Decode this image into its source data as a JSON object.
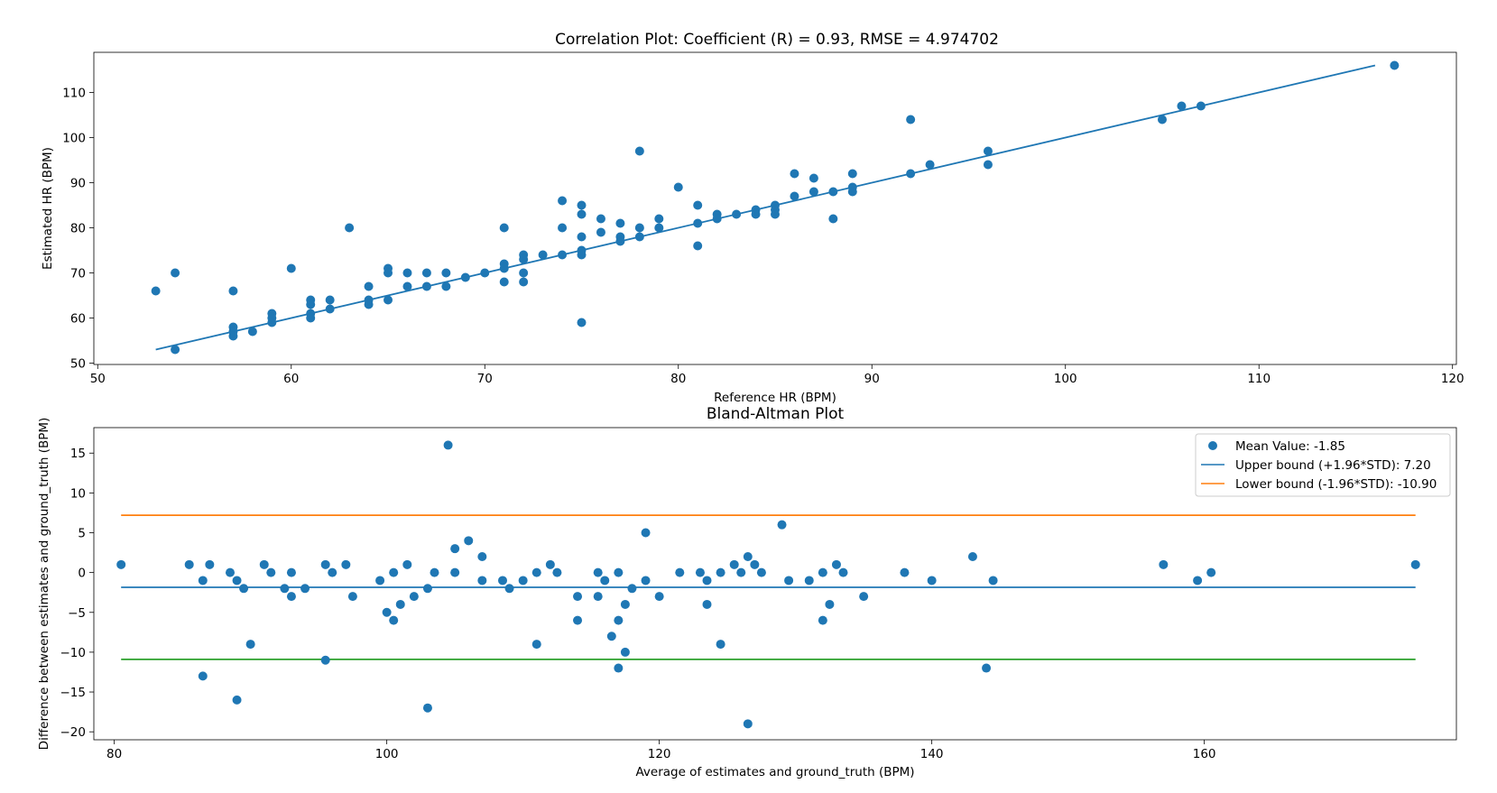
{
  "chart_data": [
    {
      "type": "scatter",
      "title": "Correlation Plot: Coefficient (R) = 0.93, RMSE = 4.974702",
      "xlabel": "Reference HR (BPM)",
      "ylabel": "Estimated HR (BPM)",
      "xlim": [
        49.8,
        120.2
      ],
      "ylim": [
        49.7,
        118.9
      ],
      "xticks": [
        "50",
        "60",
        "70",
        "80",
        "90",
        "100",
        "110",
        "120"
      ],
      "yticks": [
        "50",
        "60",
        "70",
        "80",
        "90",
        "100",
        "110"
      ],
      "xtick_values": [
        50,
        60,
        70,
        80,
        90,
        100,
        110,
        120
      ],
      "ytick_values": [
        50,
        60,
        70,
        80,
        90,
        100,
        110
      ],
      "grid": false,
      "point_color": "#1f77b4",
      "fit_line": {
        "color": "#1f77b4",
        "x": [
          53,
          116
        ],
        "y": [
          53,
          116
        ]
      },
      "points": [
        [
          53,
          66
        ],
        [
          54,
          70
        ],
        [
          54,
          53
        ],
        [
          57,
          66
        ],
        [
          57,
          58
        ],
        [
          57,
          57
        ],
        [
          57,
          56
        ],
        [
          58,
          57
        ],
        [
          59,
          61
        ],
        [
          59,
          60
        ],
        [
          59,
          59
        ],
        [
          60,
          71
        ],
        [
          61,
          64
        ],
        [
          61,
          63
        ],
        [
          61,
          61
        ],
        [
          61,
          60
        ],
        [
          62,
          64
        ],
        [
          62,
          62
        ],
        [
          63,
          80
        ],
        [
          64,
          67
        ],
        [
          64,
          64
        ],
        [
          64,
          63
        ],
        [
          65,
          71
        ],
        [
          65,
          70
        ],
        [
          65,
          64
        ],
        [
          66,
          70
        ],
        [
          66,
          67
        ],
        [
          67,
          70
        ],
        [
          67,
          67
        ],
        [
          68,
          70
        ],
        [
          68,
          67
        ],
        [
          69,
          69
        ],
        [
          70,
          70
        ],
        [
          71,
          80
        ],
        [
          71,
          72
        ],
        [
          71,
          71
        ],
        [
          71,
          68
        ],
        [
          72,
          74
        ],
        [
          72,
          73
        ],
        [
          72,
          70
        ],
        [
          72,
          68
        ],
        [
          73,
          74
        ],
        [
          74,
          86
        ],
        [
          74,
          80
        ],
        [
          74,
          74
        ],
        [
          75,
          85
        ],
        [
          75,
          83
        ],
        [
          75,
          78
        ],
        [
          75,
          75
        ],
        [
          75,
          74
        ],
        [
          75,
          59
        ],
        [
          76,
          82
        ],
        [
          76,
          79
        ],
        [
          77,
          81
        ],
        [
          77,
          78
        ],
        [
          77,
          77
        ],
        [
          78,
          97
        ],
        [
          78,
          80
        ],
        [
          78,
          78
        ],
        [
          79,
          82
        ],
        [
          79,
          80
        ],
        [
          80,
          89
        ],
        [
          81,
          85
        ],
        [
          81,
          81
        ],
        [
          81,
          76
        ],
        [
          82,
          83
        ],
        [
          82,
          82
        ],
        [
          83,
          83
        ],
        [
          84,
          84
        ],
        [
          84,
          83
        ],
        [
          85,
          85
        ],
        [
          85,
          84
        ],
        [
          85,
          83
        ],
        [
          86,
          92
        ],
        [
          86,
          87
        ],
        [
          87,
          91
        ],
        [
          87,
          88
        ],
        [
          88,
          88
        ],
        [
          88,
          82
        ],
        [
          89,
          92
        ],
        [
          89,
          89
        ],
        [
          89,
          88
        ],
        [
          92,
          104
        ],
        [
          92,
          92
        ],
        [
          93,
          94
        ],
        [
          96,
          97
        ],
        [
          96,
          94
        ],
        [
          105,
          104
        ],
        [
          106,
          107
        ],
        [
          107,
          107
        ],
        [
          117,
          116
        ]
      ]
    },
    {
      "type": "scatter",
      "title": "Bland-Altman Plot",
      "xlabel": "Average of estimates and ground_truth (BPM)",
      "ylabel": "Difference between estimates and ground_truth (BPM)",
      "xlim": [
        78.5,
        178.5
      ],
      "ylim": [
        -21.0,
        18.2
      ],
      "xticks": [
        "80",
        "100",
        "120",
        "140",
        "160"
      ],
      "yticks": [
        "−20",
        "−15",
        "−10",
        "−5",
        "0",
        "5",
        "10",
        "15"
      ],
      "xtick_values": [
        80,
        100,
        120,
        140,
        160
      ],
      "ytick_values": [
        -20,
        -15,
        -10,
        -5,
        0,
        5,
        10,
        15
      ],
      "grid": false,
      "legend_position": "top-right",
      "legend": [
        {
          "label": "Mean Value: -1.85",
          "kind": "marker",
          "color": "#1f77b4"
        },
        {
          "label": "Upper bound (+1.96*STD): 7.20",
          "kind": "line",
          "color": "#1f77b4"
        },
        {
          "label": "Lower bound (-1.96*STD): -10.90",
          "kind": "line",
          "color": "#ff7f0e"
        }
      ],
      "hlines": [
        {
          "y": 7.2,
          "color": "#ff7f0e",
          "x": [
            80.5,
            175.5
          ]
        },
        {
          "y": -1.85,
          "color": "#1f77b4",
          "x": [
            80.5,
            175.5
          ]
        },
        {
          "y": -10.9,
          "color": "#2ca02c",
          "x": [
            80.5,
            175.5
          ]
        }
      ],
      "point_color": "#1f77b4",
      "points": [
        [
          80.5,
          1
        ],
        [
          85.5,
          1
        ],
        [
          86.5,
          -1
        ],
        [
          86.5,
          -13
        ],
        [
          87,
          1
        ],
        [
          88.5,
          0
        ],
        [
          89,
          -1
        ],
        [
          89,
          -16
        ],
        [
          89.5,
          -2
        ],
        [
          90,
          -9
        ],
        [
          91,
          1
        ],
        [
          91.5,
          0
        ],
        [
          92.5,
          -2
        ],
        [
          93,
          -3
        ],
        [
          93,
          0
        ],
        [
          94,
          -2
        ],
        [
          95.5,
          1
        ],
        [
          95.5,
          -11
        ],
        [
          96,
          0
        ],
        [
          97,
          1
        ],
        [
          97.5,
          -3
        ],
        [
          99.5,
          -1
        ],
        [
          100,
          -5
        ],
        [
          100.5,
          -6
        ],
        [
          100.5,
          0
        ],
        [
          101,
          -4
        ],
        [
          101.5,
          1
        ],
        [
          102,
          -3
        ],
        [
          103,
          -2
        ],
        [
          103,
          -17
        ],
        [
          103.5,
          0
        ],
        [
          104.5,
          16
        ],
        [
          105,
          3
        ],
        [
          105,
          0
        ],
        [
          106,
          4
        ],
        [
          107,
          2
        ],
        [
          107,
          -1
        ],
        [
          108.5,
          -1
        ],
        [
          109,
          -2
        ],
        [
          110,
          -1
        ],
        [
          111,
          -9
        ],
        [
          111,
          0
        ],
        [
          112,
          1
        ],
        [
          112.5,
          0
        ],
        [
          114,
          -3
        ],
        [
          114,
          -6
        ],
        [
          115.5,
          0
        ],
        [
          115.5,
          -3
        ],
        [
          116,
          -1
        ],
        [
          116.5,
          -8
        ],
        [
          117,
          0
        ],
        [
          117,
          -6
        ],
        [
          117,
          -12
        ],
        [
          117.5,
          -4
        ],
        [
          117.5,
          -10
        ],
        [
          118,
          -2
        ],
        [
          119,
          5
        ],
        [
          119,
          -1
        ],
        [
          120,
          -3
        ],
        [
          121.5,
          0
        ],
        [
          123,
          0
        ],
        [
          123.5,
          -1
        ],
        [
          123.5,
          -4
        ],
        [
          124.5,
          0
        ],
        [
          124.5,
          -9
        ],
        [
          125.5,
          1
        ],
        [
          126,
          0
        ],
        [
          126.5,
          2
        ],
        [
          126.5,
          -19
        ],
        [
          127,
          1
        ],
        [
          127.5,
          0
        ],
        [
          129,
          6
        ],
        [
          129.5,
          -1
        ],
        [
          131,
          -1
        ],
        [
          132,
          0
        ],
        [
          132,
          -6
        ],
        [
          132.5,
          -4
        ],
        [
          133,
          1
        ],
        [
          133.5,
          0
        ],
        [
          135,
          -3
        ],
        [
          138,
          0
        ],
        [
          140,
          -1
        ],
        [
          143,
          2
        ],
        [
          144,
          -12
        ],
        [
          144.5,
          -1
        ],
        [
          157,
          1
        ],
        [
          159.5,
          -1
        ],
        [
          160.5,
          0
        ],
        [
          175.5,
          1
        ]
      ]
    }
  ]
}
